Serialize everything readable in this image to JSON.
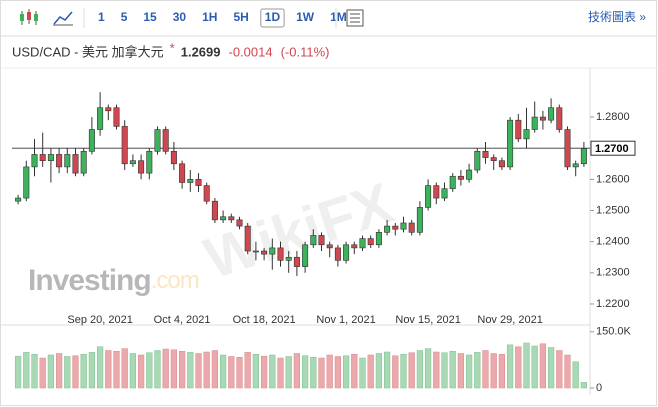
{
  "toolbar": {
    "intervals": [
      "1",
      "5",
      "15",
      "30",
      "1H",
      "5H",
      "1D",
      "1W",
      "1M"
    ],
    "selected": "1D",
    "link": "技術圖表 »"
  },
  "quote": {
    "symbol": "USD/CAD - 美元 加拿大元",
    "star": "*",
    "price": "1.2699",
    "change": "-0.0014",
    "change_pct": "(-0.11%)"
  },
  "watermark": {
    "brand": "Investing",
    "suffix": ".com",
    "overlay": "WikiFX"
  },
  "chart_data": {
    "type": "candlestick",
    "categories": [
      null,
      null,
      null,
      null,
      null,
      null,
      null,
      null,
      null,
      null,
      "Sep 20, 2021",
      null,
      null,
      null,
      null,
      null,
      null,
      null,
      null,
      null,
      "Oct 4, 2021",
      null,
      null,
      null,
      null,
      null,
      null,
      null,
      null,
      null,
      "Oct 18, 2021",
      null,
      null,
      null,
      null,
      null,
      null,
      null,
      null,
      null,
      "Nov 1, 2021",
      null,
      null,
      null,
      null,
      null,
      null,
      null,
      null,
      null,
      "Nov 15, 2021",
      null,
      null,
      null,
      null,
      null,
      null,
      null,
      null,
      null,
      "Nov 29, 2021",
      null,
      null,
      null,
      null,
      null,
      null,
      null,
      null,
      null
    ],
    "open": [
      1.253,
      1.254,
      1.264,
      1.268,
      1.266,
      1.268,
      1.264,
      1.268,
      1.262,
      1.269,
      1.276,
      1.283,
      1.283,
      1.277,
      1.265,
      1.266,
      1.262,
      1.269,
      1.276,
      1.269,
      1.265,
      1.259,
      1.26,
      1.258,
      1.253,
      1.247,
      1.248,
      1.247,
      1.245,
      1.237,
      1.237,
      1.236,
      1.238,
      1.234,
      1.235,
      1.232,
      1.239,
      1.242,
      1.239,
      1.238,
      1.234,
      1.239,
      1.238,
      1.241,
      1.239,
      1.243,
      1.245,
      1.244,
      1.246,
      1.243,
      1.251,
      1.258,
      1.254,
      1.257,
      1.261,
      1.26,
      1.263,
      1.269,
      1.267,
      1.266,
      1.264,
      1.279,
      1.273,
      1.276,
      1.28,
      1.279,
      1.283,
      1.276,
      1.264,
      1.265
    ],
    "high": [
      1.255,
      1.266,
      1.273,
      1.275,
      1.27,
      1.27,
      1.27,
      1.27,
      1.27,
      1.28,
      1.288,
      1.284,
      1.284,
      1.279,
      1.268,
      1.268,
      1.27,
      1.277,
      1.277,
      1.272,
      1.266,
      1.263,
      1.262,
      1.259,
      1.254,
      1.25,
      1.249,
      1.248,
      1.246,
      1.24,
      1.238,
      1.241,
      1.24,
      1.237,
      1.237,
      1.24,
      1.244,
      1.243,
      1.24,
      1.239,
      1.24,
      1.24,
      1.242,
      1.242,
      1.244,
      1.247,
      1.246,
      1.248,
      1.247,
      1.253,
      1.26,
      1.259,
      1.259,
      1.262,
      1.263,
      1.265,
      1.27,
      1.272,
      1.268,
      1.267,
      1.28,
      1.281,
      1.283,
      1.285,
      1.282,
      1.286,
      1.284,
      1.277,
      1.266,
      1.272
    ],
    "low": [
      1.252,
      1.253,
      1.261,
      1.264,
      1.259,
      1.262,
      1.262,
      1.261,
      1.261,
      1.268,
      1.274,
      1.279,
      1.276,
      1.263,
      1.264,
      1.26,
      1.26,
      1.268,
      1.268,
      1.263,
      1.257,
      1.256,
      1.256,
      1.252,
      1.246,
      1.246,
      1.246,
      1.244,
      1.236,
      1.234,
      1.234,
      1.231,
      1.232,
      1.23,
      1.229,
      1.23,
      1.238,
      1.237,
      1.235,
      1.232,
      1.233,
      1.236,
      1.237,
      1.238,
      1.238,
      1.242,
      1.242,
      1.243,
      1.242,
      1.242,
      1.25,
      1.252,
      1.253,
      1.256,
      1.258,
      1.259,
      1.262,
      1.265,
      1.263,
      1.263,
      1.263,
      1.272,
      1.27,
      1.275,
      1.276,
      1.278,
      1.275,
      1.263,
      1.261,
      1.264
    ],
    "close": [
      1.254,
      1.264,
      1.268,
      1.266,
      1.268,
      1.264,
      1.268,
      1.262,
      1.269,
      1.276,
      1.283,
      1.282,
      1.277,
      1.265,
      1.266,
      1.262,
      1.269,
      1.276,
      1.269,
      1.265,
      1.259,
      1.26,
      1.258,
      1.253,
      1.247,
      1.248,
      1.247,
      1.245,
      1.237,
      1.237,
      1.236,
      1.238,
      1.234,
      1.235,
      1.232,
      1.239,
      1.242,
      1.239,
      1.238,
      1.234,
      1.239,
      1.238,
      1.241,
      1.239,
      1.243,
      1.245,
      1.244,
      1.246,
      1.243,
      1.251,
      1.258,
      1.254,
      1.257,
      1.261,
      1.26,
      1.263,
      1.269,
      1.267,
      1.266,
      1.264,
      1.279,
      1.273,
      1.276,
      1.28,
      1.279,
      1.283,
      1.276,
      1.264,
      1.265,
      1.2699
    ],
    "volume": [
      85000,
      95000,
      90000,
      80000,
      88000,
      92000,
      84000,
      86000,
      90000,
      95000,
      110000,
      100000,
      98000,
      105000,
      92000,
      88000,
      94000,
      100000,
      104000,
      102000,
      98000,
      95000,
      92000,
      96000,
      100000,
      88000,
      84000,
      82000,
      95000,
      90000,
      85000,
      88000,
      80000,
      84000,
      92000,
      86000,
      82000,
      80000,
      88000,
      84000,
      86000,
      90000,
      80000,
      88000,
      92000,
      96000,
      86000,
      90000,
      94000,
      100000,
      105000,
      96000,
      94000,
      98000,
      92000,
      88000,
      95000,
      100000,
      92000,
      90000,
      115000,
      110000,
      120000,
      112000,
      118000,
      108000,
      100000,
      88000,
      70000,
      15000
    ],
    "up_color": "#3cb25c",
    "down_color": "#d0474f",
    "volume_up_color": "#a9d8b4",
    "volume_down_color": "#eba9ac",
    "ylim": [
      1.2155,
      1.2935
    ],
    "yticks": [
      {
        "value": 1.22,
        "label": "1.2200"
      },
      {
        "value": 1.23,
        "label": "1.2300"
      },
      {
        "value": 1.24,
        "label": "1.2400"
      },
      {
        "value": 1.25,
        "label": "1.2500"
      },
      {
        "value": 1.26,
        "label": "1.2600"
      },
      {
        "value": 1.28,
        "label": "1.2800"
      }
    ],
    "price_line": {
      "value": 1.27,
      "label": "1.2700"
    },
    "y2lim": [
      0,
      160000
    ],
    "y2ticks": [
      {
        "value": 150000,
        "label": "150.0K"
      },
      0
    ]
  }
}
